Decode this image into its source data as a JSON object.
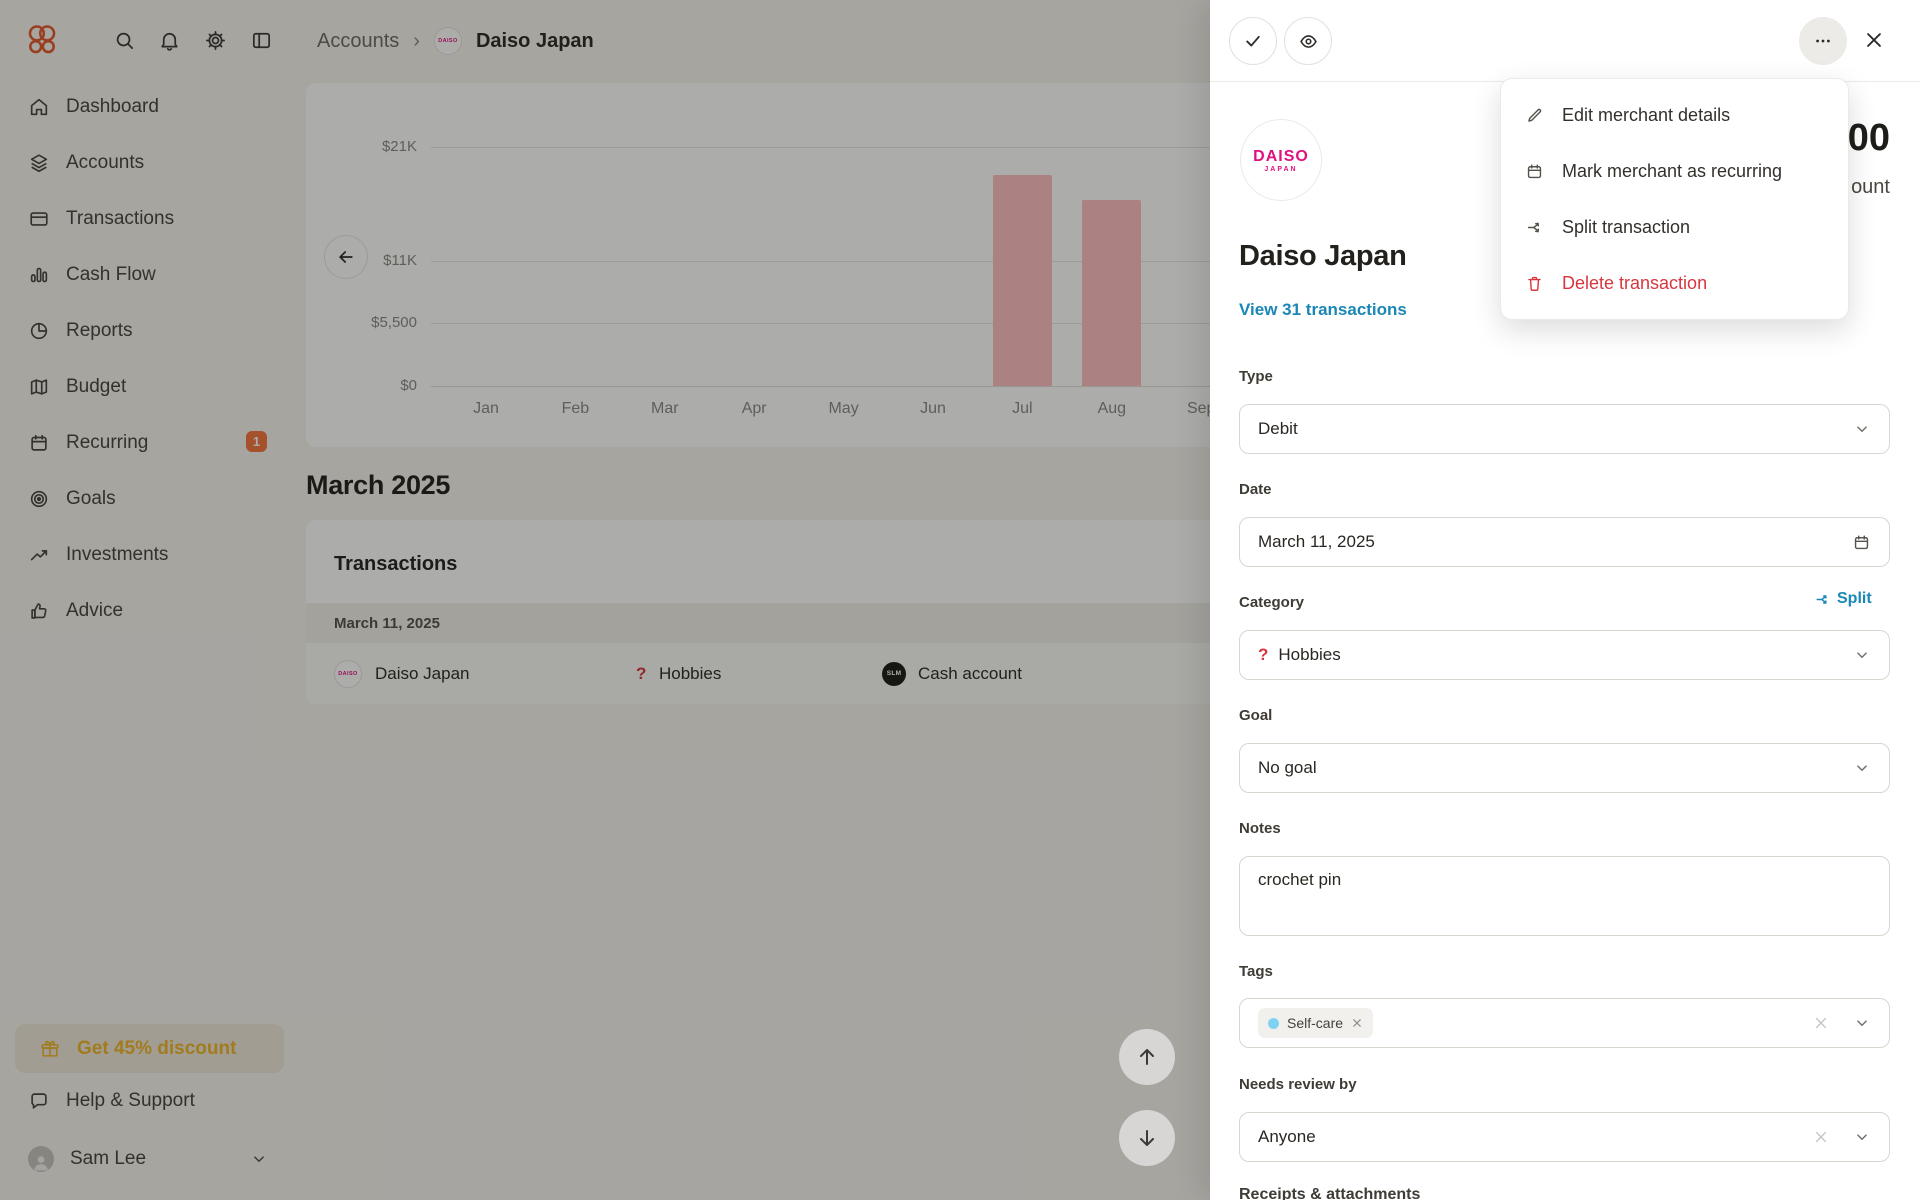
{
  "colors": {
    "accent_orange": "#e4572e",
    "badge_orange": "#f4743c",
    "link_blue": "#1b87b5",
    "danger_red": "#d8363e",
    "bar_pink": "#ffbdbf",
    "tag_dot_blue": "#7fd2f2",
    "discount_amber": "#f0b429",
    "daiso_pink": "#e0107f"
  },
  "topbar": {
    "icons": [
      "search-icon",
      "bell-icon",
      "gear-icon",
      "panel-icon"
    ],
    "breadcrumb": {
      "parent": "Accounts",
      "separator": "›",
      "current": "Daiso Japan"
    }
  },
  "sidebar": {
    "items": [
      {
        "label": "Dashboard",
        "icon": "home-icon"
      },
      {
        "label": "Accounts",
        "icon": "layers-icon"
      },
      {
        "label": "Transactions",
        "icon": "credit-card-icon"
      },
      {
        "label": "Cash Flow",
        "icon": "bar-chart-icon"
      },
      {
        "label": "Reports",
        "icon": "pie-chart-icon"
      },
      {
        "label": "Budget",
        "icon": "map-icon"
      },
      {
        "label": "Recurring",
        "icon": "calendar-icon",
        "badge": "1"
      },
      {
        "label": "Goals",
        "icon": "target-icon"
      },
      {
        "label": "Investments",
        "icon": "trending-up-icon"
      },
      {
        "label": "Advice",
        "icon": "thumbs-up-icon"
      }
    ],
    "discount_label": "Get 45% discount",
    "help_label": "Help & Support",
    "user_name": "Sam Lee"
  },
  "chart_data": {
    "type": "bar",
    "title": "",
    "categories": [
      "Jan",
      "Feb",
      "Mar",
      "Apr",
      "May",
      "Jun",
      "Jul",
      "Aug",
      "Sep"
    ],
    "values": [
      0,
      0,
      0,
      0,
      0,
      0,
      18500,
      16300,
      0
    ],
    "yticks": [
      {
        "label": "$0",
        "value": 0
      },
      {
        "label": "$5,500",
        "value": 5500
      },
      {
        "label": "$11K",
        "value": 11000
      },
      {
        "label": "$21K",
        "value": 21000
      }
    ],
    "ylim": [
      0,
      21000
    ],
    "grid": true,
    "legend": "none",
    "bar_color": "#ffbdbf",
    "note_visible_region": "Jan through Sep visible; right side hidden by side panel"
  },
  "main": {
    "month_heading": "March 2025",
    "card_title": "Transactions",
    "date_group": "March 11, 2025",
    "row": {
      "merchant": "Daiso Japan",
      "merchant_logo_text": "DAISO",
      "category": "Hobbies",
      "category_icon": "?",
      "account": "Cash account",
      "account_logo_text": "SLM"
    }
  },
  "drawer": {
    "amount_fragment": "00",
    "account_fragment": "ount",
    "logo_line1": "DAISO",
    "logo_line2": "JAPAN",
    "merchant_name": "Daiso Japan",
    "view_link": "View 31 transactions",
    "type": {
      "label": "Type",
      "value": "Debit"
    },
    "date": {
      "label": "Date",
      "value": "March 11, 2025"
    },
    "category": {
      "label": "Category",
      "value": "Hobbies",
      "icon": "?",
      "split_label": "Split"
    },
    "goal": {
      "label": "Goal",
      "value": "No goal"
    },
    "notes": {
      "label": "Notes",
      "value": "crochet pin"
    },
    "tags": {
      "label": "Tags",
      "tag": "Self-care"
    },
    "review": {
      "label": "Needs review by",
      "value": "Anyone"
    },
    "receipts_label": "Receipts & attachments"
  },
  "menu": {
    "items": [
      {
        "label": "Edit merchant details",
        "icon": "pencil-icon"
      },
      {
        "label": "Mark merchant as recurring",
        "icon": "calendar-icon"
      },
      {
        "label": "Split transaction",
        "icon": "split-icon"
      },
      {
        "label": "Delete transaction",
        "icon": "trash-icon"
      }
    ]
  }
}
